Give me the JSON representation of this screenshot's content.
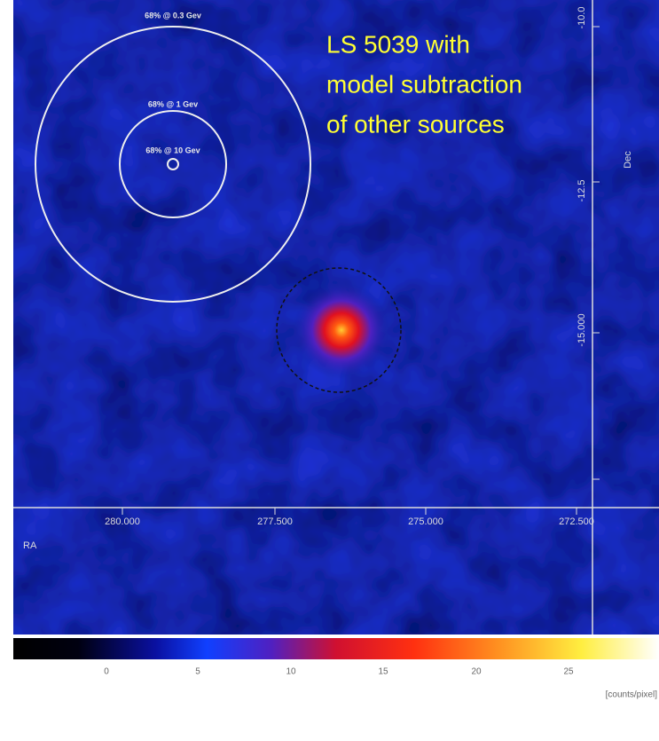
{
  "circles": {
    "outer_label": "68% @ 0.3 Gev",
    "middle_label": "68% @ 1 Gev",
    "inner_label": "68% @ 10 Gev"
  },
  "annotation": {
    "lines": [
      "LS 5039 with",
      "model subtraction",
      "of other sources"
    ]
  },
  "ra_axis": {
    "label": "RA",
    "ticks": [
      "280.000",
      "277.500",
      "275.000",
      "272.500"
    ]
  },
  "dec_axis": {
    "label": "Dec",
    "ticks": [
      "-10.0",
      "-12.5",
      "-15.000"
    ]
  },
  "colorbar": {
    "ticks": [
      "0",
      "5",
      "10",
      "15",
      "20",
      "25"
    ],
    "unit": "[counts/pixel]"
  }
}
